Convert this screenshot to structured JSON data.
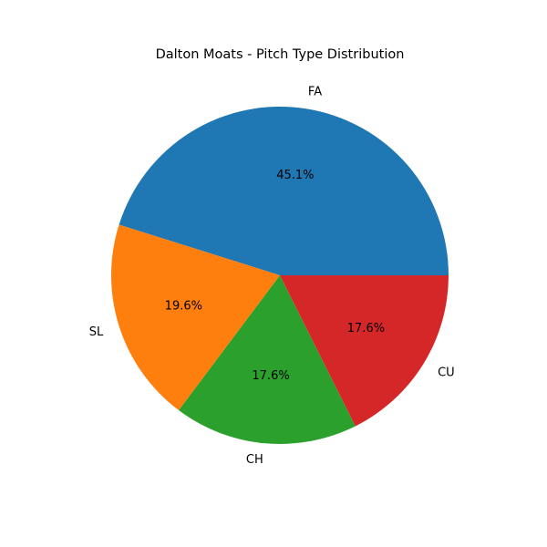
{
  "chart_data": {
    "type": "pie",
    "title": "Dalton Moats - Pitch Type Distribution",
    "categories": [
      "FA",
      "SL",
      "CH",
      "CU"
    ],
    "values": [
      45.1,
      19.6,
      17.6,
      17.6
    ],
    "percent_labels": [
      "45.1%",
      "19.6%",
      "17.6%",
      "17.6%"
    ],
    "colors": [
      "#1f77b4",
      "#ff7f0e",
      "#2ca02c",
      "#d62728"
    ],
    "start_angle_deg": 0,
    "direction": "counterclockwise",
    "legend": "none"
  }
}
